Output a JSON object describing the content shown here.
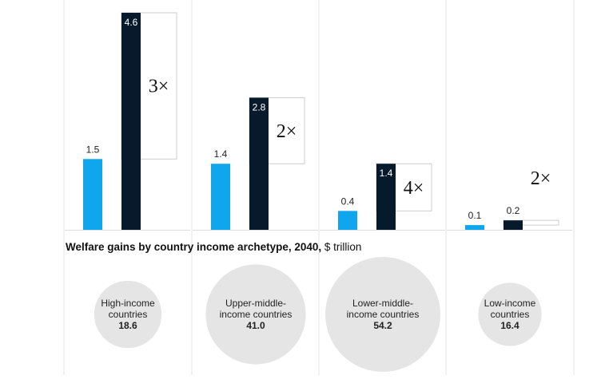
{
  "chart_data": [
    {
      "type": "bar",
      "categories": [
        "High-income countries",
        "Upper-middle-income countries",
        "Lower-middle-income countries",
        "Low-income countries"
      ],
      "series": [
        {
          "values": [
            1.5,
            1.4,
            0.4,
            0.1
          ]
        },
        {
          "values": [
            4.6,
            2.8,
            1.4,
            0.2
          ]
        }
      ],
      "value_labels": [
        [
          "1.5",
          "1.4",
          "0.4",
          "0.1"
        ],
        [
          "4.6",
          "2.8",
          "1.4",
          "0.2"
        ]
      ],
      "multipliers": [
        "3×",
        "2×",
        "4×",
        "2×"
      ],
      "colors": [
        "#0fa6ee",
        "#061a2c"
      ],
      "ylim": [
        0,
        4.6
      ],
      "grid": false
    },
    {
      "type": "bubble",
      "title": "Welfare gains by country income archetype, 2040,",
      "unit": "$ trillion",
      "categories": [
        "High-income countries",
        "Upper-middle-income countries",
        "Lower-middle-income countries",
        "Low-income countries"
      ],
      "label_lines": [
        [
          "High-income",
          "countries"
        ],
        [
          "Upper-middle-",
          "income countries"
        ],
        [
          "Lower-middle-",
          "income countries"
        ],
        [
          "Low-income",
          "countries"
        ]
      ],
      "values": [
        18.6,
        41.0,
        54.2,
        16.4
      ],
      "value_labels": [
        "18.6",
        "41.0",
        "54.2",
        "16.4"
      ],
      "color": "#e5e5e5"
    }
  ]
}
